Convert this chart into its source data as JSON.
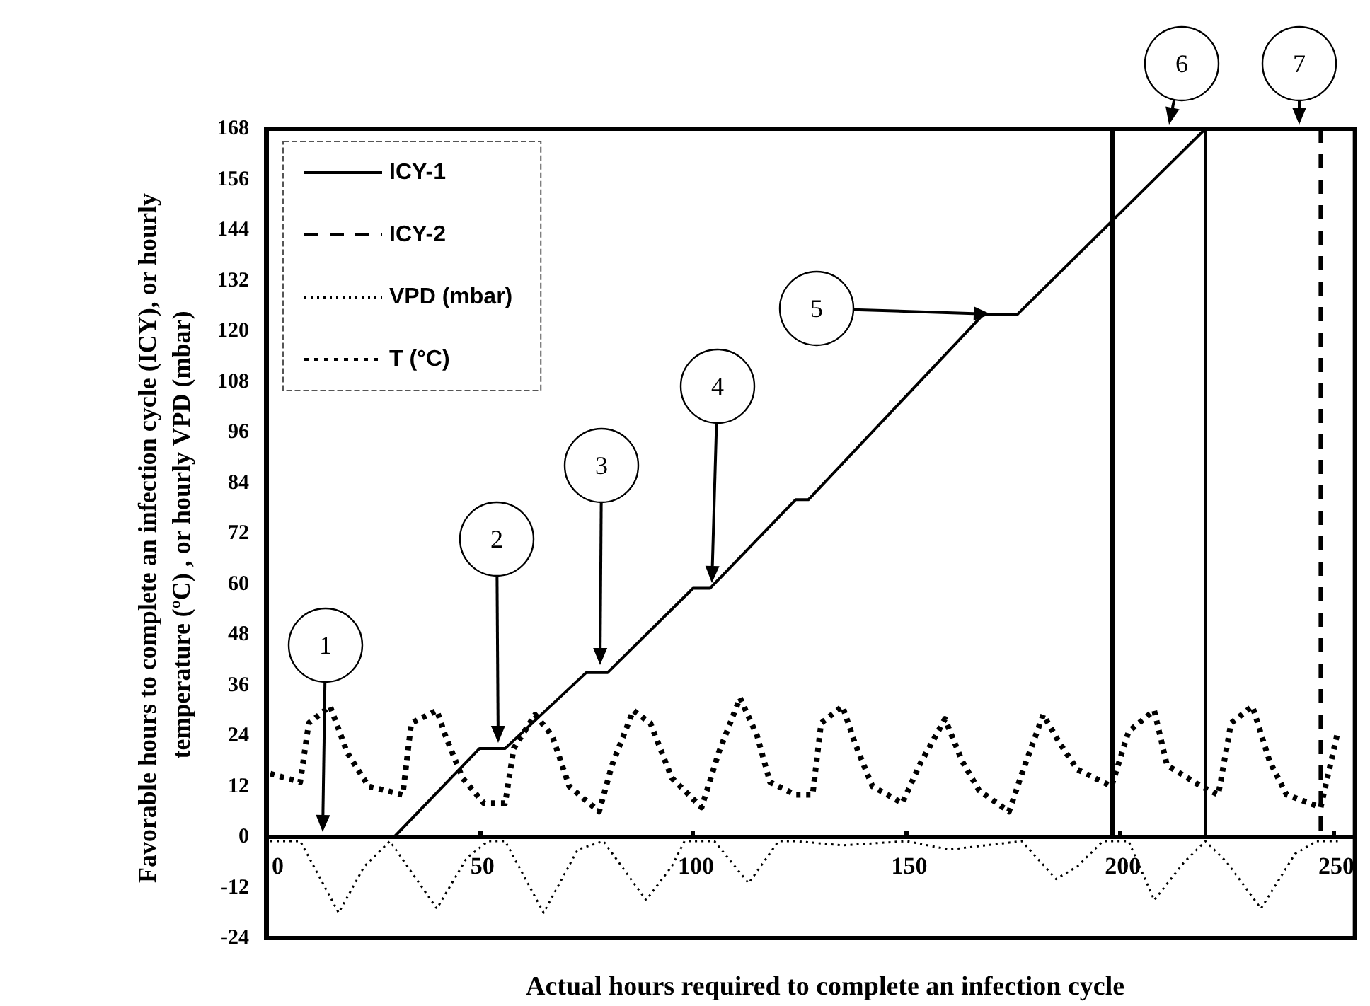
{
  "chart_data": {
    "type": "line",
    "xlabel": "Actual hours required to complete an infection cycle",
    "ylabel": "Favorable hours to complete an infection cycle (ICY), or hourly temperature (ºC) , or hourly VPD (mbar)",
    "xlim": [
      0,
      255
    ],
    "xticks": [
      0,
      50,
      100,
      150,
      200,
      250
    ],
    "ylim": [
      -24,
      168
    ],
    "yticks": [
      -24,
      -12,
      0,
      12,
      24,
      36,
      48,
      60,
      72,
      84,
      96,
      108,
      120,
      132,
      144,
      156,
      168
    ],
    "legend": "top left",
    "marker": "none",
    "series": [
      {
        "name": "ICY-1",
        "color": "#000000",
        "line_style": "solid",
        "x": [
          30,
          50,
          56,
          75,
          80,
          100,
          104,
          124,
          127,
          168,
          176,
          220,
          220
        ],
        "values": [
          0,
          21,
          21,
          39,
          39,
          59,
          59,
          80,
          80,
          124,
          124,
          168,
          0
        ]
      },
      {
        "name": "ICY-2",
        "color": "#000000",
        "line_style": "dashed",
        "x": [
          247,
          247
        ],
        "values": [
          168,
          0
        ]
      },
      {
        "name": "VPD (mbar)",
        "color": "#000000",
        "line_style": "dotted",
        "x": [
          1,
          8,
          17,
          23,
          29,
          40,
          47,
          52,
          56,
          65,
          73,
          79,
          89,
          95,
          98,
          105,
          113,
          120,
          124,
          135,
          150,
          160,
          177,
          185,
          190,
          196,
          202,
          208,
          215,
          220,
          225,
          233,
          241,
          246,
          251
        ],
        "values": [
          -1,
          -1,
          -18,
          -7,
          -1,
          -17,
          -5,
          -1,
          -1,
          -18,
          -3,
          -1,
          -15,
          -7,
          -1,
          -1,
          -11,
          -1,
          -1,
          -2,
          -1,
          -3,
          -1,
          -10,
          -7,
          -1,
          -1,
          -15,
          -6,
          -1,
          -6,
          -17,
          -4,
          -1,
          -1
        ]
      },
      {
        "name": "T (°C)",
        "color": "#000000",
        "line_style": "dotted",
        "x": [
          1,
          8,
          10,
          15,
          19,
          24,
          32,
          34,
          40,
          42,
          46,
          51,
          56,
          58,
          63,
          67,
          71,
          78,
          81,
          86,
          90,
          95,
          102,
          106,
          111,
          115,
          118,
          124,
          128,
          130,
          135,
          138,
          142,
          149,
          153,
          159,
          163,
          167,
          174,
          177,
          182,
          186,
          190,
          198,
          202,
          208,
          211,
          219,
          223,
          226,
          231,
          235,
          239,
          247,
          251
        ],
        "values": [
          15,
          13,
          27,
          31,
          20,
          12,
          10,
          27,
          30,
          24,
          14,
          8,
          8,
          21,
          29,
          24,
          12,
          6,
          17,
          30,
          27,
          14,
          7,
          20,
          33,
          24,
          13,
          10,
          10,
          27,
          31,
          22,
          12,
          8,
          17,
          28,
          18,
          11,
          6,
          15,
          29,
          22,
          16,
          12,
          25,
          30,
          17,
          12,
          10,
          27,
          31,
          18,
          10,
          7,
          25
        ]
      }
    ],
    "ref_lines": [
      {
        "axis": "x",
        "value": 198,
        "color": "#000000"
      }
    ],
    "annotations": [
      "1",
      "2",
      "3",
      "4",
      "5",
      "6",
      "7"
    ]
  }
}
